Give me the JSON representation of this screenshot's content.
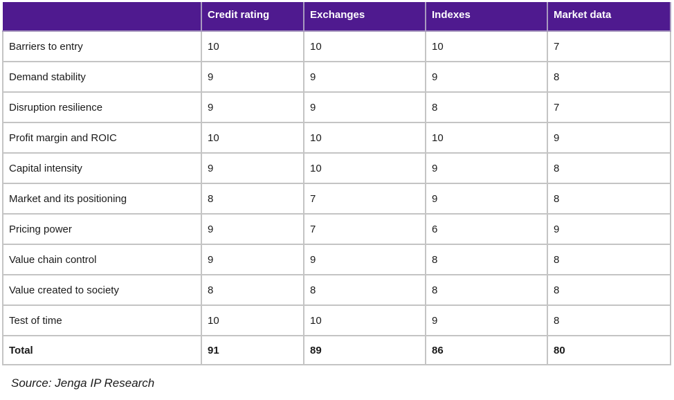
{
  "table": {
    "headers": [
      "",
      "Credit rating",
      "Exchanges",
      "Indexes",
      "Market data"
    ],
    "rows": [
      [
        "Barriers to entry",
        "10",
        "10",
        "10",
        "7"
      ],
      [
        "Demand stability",
        "9",
        "9",
        "9",
        "8"
      ],
      [
        "Disruption resilience",
        "9",
        "9",
        "8",
        "7"
      ],
      [
        "Profit margin and ROIC",
        "10",
        "10",
        "10",
        "9"
      ],
      [
        "Capital intensity",
        "9",
        "10",
        "9",
        "8"
      ],
      [
        "Market and its positioning",
        "8",
        "7",
        "9",
        "8"
      ],
      [
        "Pricing power",
        "9",
        "7",
        "6",
        "9"
      ],
      [
        "Value chain control",
        "9",
        "9",
        "8",
        "8"
      ],
      [
        "Value created to society",
        "8",
        "8",
        "8",
        "8"
      ],
      [
        "Test of time",
        "10",
        "10",
        "9",
        "8"
      ]
    ],
    "total": [
      "Total",
      "91",
      "89",
      "86",
      "80"
    ]
  },
  "source": "Source: Jenga IP Research",
  "colors": {
    "header_bg": "#4f1a8f",
    "header_text": "#ffffff",
    "grid": "#c4c4c4"
  }
}
